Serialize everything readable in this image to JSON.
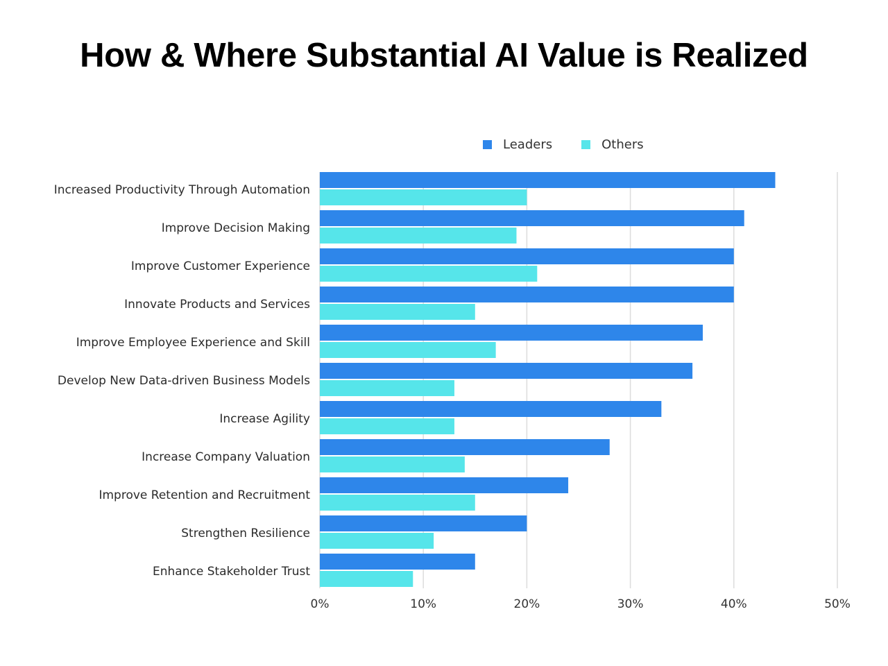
{
  "chart_data": {
    "type": "bar",
    "orientation": "horizontal",
    "title": "How & Where Substantial AI Value is Realized",
    "xlabel": "",
    "ylabel": "",
    "xlim": [
      0,
      50
    ],
    "x_ticks": [
      "0%",
      "10%",
      "20%",
      "30%",
      "40%",
      "50%"
    ],
    "x_tick_values": [
      0,
      10,
      20,
      30,
      40,
      50
    ],
    "grid": true,
    "legend_position": "top-right",
    "categories": [
      "Increased Productivity Through Automation",
      "Improve Decision Making",
      "Improve Customer Experience",
      "Innovate Products and Services",
      "Improve Employee Experience and Skill",
      "Develop New Data-driven Business Models",
      "Increase Agility",
      "Increase Company Valuation",
      "Improve Retention and Recruitment",
      "Strengthen Resilience",
      "Enhance Stakeholder Trust"
    ],
    "series": [
      {
        "name": "Leaders",
        "color": "#2e86ea",
        "values": [
          44,
          41,
          40,
          40,
          37,
          36,
          33,
          28,
          24,
          20,
          15
        ]
      },
      {
        "name": "Others",
        "color": "#56e5ea",
        "values": [
          20,
          19,
          21,
          15,
          17,
          13,
          13,
          14,
          15,
          11,
          9
        ]
      }
    ]
  }
}
